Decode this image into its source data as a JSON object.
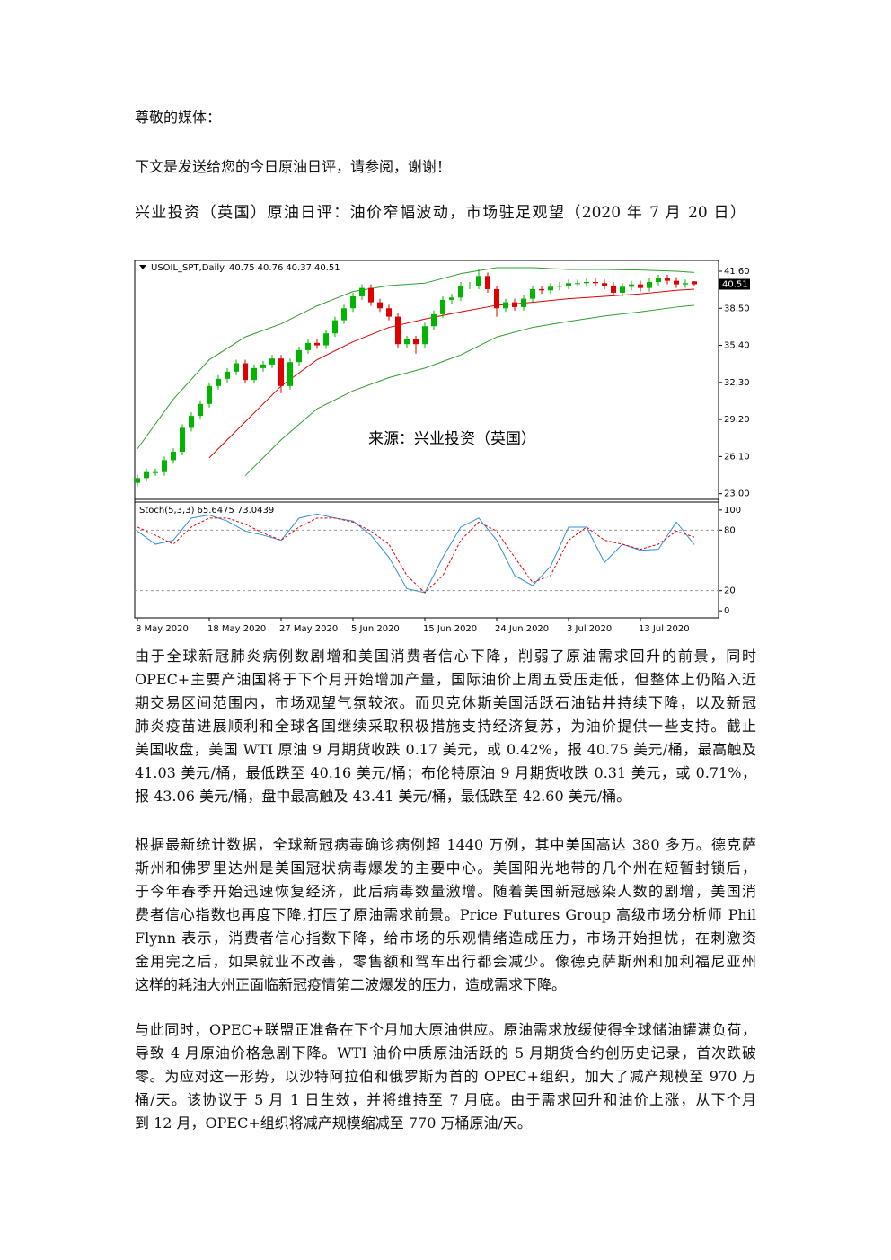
{
  "greeting": "尊敬的媒体：",
  "intro": "下文是发送给您的今日原油日评，请参阅，谢谢！",
  "headline": "兴业投资（英国）原油日评：油价窄幅波动，市场驻足观望（2020 年 7 月 20 日）",
  "chart_data": {
    "type": "candlestick",
    "symbol": "USOIL_SPT,Daily",
    "watermark": "来源：兴业投资（英国）",
    "categories": [
      "8 May 2020",
      null,
      null,
      null,
      null,
      null,
      null,
      null,
      "18 May 2020",
      null,
      null,
      null,
      null,
      null,
      null,
      null,
      "27 May 2020",
      null,
      null,
      null,
      null,
      null,
      null,
      null,
      "5 Jun 2020",
      null,
      null,
      null,
      null,
      null,
      null,
      null,
      "15 Jun 2020",
      null,
      null,
      null,
      null,
      null,
      null,
      null,
      "24 Jun 2020",
      null,
      null,
      null,
      null,
      null,
      null,
      null,
      "3 Jul 2020",
      null,
      null,
      null,
      null,
      null,
      null,
      null,
      "13 Jul 2020",
      null,
      null,
      null,
      null,
      null,
      null
    ],
    "open": [
      23.9,
      24.3,
      24.8,
      24.8,
      25.8,
      26.5,
      28.5,
      29.5,
      30.5,
      32,
      32.6,
      33.2,
      33.9,
      32.5,
      33.5,
      33.8,
      34.3,
      32,
      34,
      35,
      35.6,
      35.4,
      36.4,
      37.5,
      38.5,
      39.5,
      40.2,
      39,
      38.5,
      37.8,
      35.5,
      35.9,
      35.5,
      37,
      38,
      39.2,
      39.4,
      40.4,
      40.4,
      41.2,
      40.1,
      38.5,
      39,
      38.6,
      39.3,
      40.1,
      40,
      40.3,
      40.4,
      40.6,
      40.6,
      40.7,
      40.6,
      40.4,
      39.8,
      40.3,
      40.5,
      40.2,
      40.7,
      41,
      40.8,
      40.5,
      40.75
    ],
    "high": [
      24.6,
      25.1,
      25.1,
      26.1,
      26.8,
      28.8,
      29.8,
      30.8,
      32.3,
      32.9,
      33.5,
      34.2,
      34.2,
      33.8,
      34.1,
      34.6,
      34.6,
      34.3,
      35.3,
      35.9,
      35.9,
      36.7,
      37.8,
      38.8,
      39.8,
      40.5,
      40.5,
      39.3,
      38.8,
      38.1,
      36.2,
      36.2,
      37.3,
      38.3,
      39.5,
      39.7,
      40.7,
      40.7,
      41.8,
      41.5,
      40.4,
      39.3,
      39.3,
      39.6,
      40.4,
      40.4,
      40.6,
      40.7,
      40.9,
      40.9,
      41.0,
      41.0,
      40.9,
      40.7,
      40.6,
      40.8,
      40.8,
      41.0,
      41.3,
      41.3,
      41.1,
      40.9,
      40.76
    ],
    "low": [
      23.6,
      24.0,
      24.5,
      24.5,
      25.5,
      26.2,
      28.2,
      29.2,
      30.2,
      31.7,
      32.3,
      32.9,
      32.2,
      32.2,
      33.2,
      33.5,
      31.4,
      31.7,
      33.7,
      34.7,
      35.1,
      35.1,
      36.1,
      37.2,
      38.2,
      39.2,
      38.7,
      38.2,
      37.5,
      35.2,
      35.2,
      34.7,
      35.2,
      36.7,
      37.7,
      38.9,
      39.1,
      40.1,
      40.1,
      39.8,
      37.8,
      38.2,
      38.3,
      38.3,
      39.0,
      39.7,
      39.7,
      40.0,
      40.1,
      40.3,
      40.3,
      40.3,
      40.1,
      39.5,
      39.5,
      40.0,
      39.9,
      39.9,
      40.4,
      40.5,
      40.2,
      40.2,
      40.37
    ],
    "close": [
      24.3,
      24.8,
      24.8,
      25.8,
      26.5,
      28.5,
      29.5,
      30.5,
      32,
      32.6,
      33.2,
      33.9,
      32.5,
      33.5,
      33.8,
      34.3,
      32,
      34,
      35,
      35.6,
      35.4,
      36.4,
      37.5,
      38.5,
      39.5,
      40.2,
      39,
      38.5,
      37.8,
      35.5,
      35.9,
      35.5,
      37,
      38,
      39.2,
      39.4,
      40.4,
      40.4,
      41.2,
      40.1,
      38.5,
      39,
      38.6,
      39.3,
      40.1,
      40,
      40.3,
      40.4,
      40.6,
      40.6,
      40.7,
      40.6,
      40.4,
      39.8,
      40.3,
      40.5,
      40.2,
      40.7,
      41,
      40.8,
      40.5,
      40.6,
      40.51
    ],
    "up_color": "#00b400",
    "down_color": "#e00000",
    "ylim": [
      22.6,
      42.5
    ],
    "yticks": [
      {
        "value": 23,
        "label": "23.00"
      },
      {
        "value": 26.1,
        "label": "26.10"
      },
      {
        "value": 29.2,
        "label": "29.20"
      },
      {
        "value": 32.3,
        "label": "32.30"
      },
      {
        "value": 35.4,
        "label": "35.40"
      },
      {
        "value": 38.5,
        "label": "38.50"
      },
      {
        "value": 41.6,
        "label": "41.60"
      }
    ],
    "bands": {
      "x": [
        0,
        4,
        8,
        12,
        16,
        20,
        24,
        28,
        32,
        36,
        40,
        44,
        48,
        52,
        56,
        60,
        62
      ],
      "series": [
        {
          "color": "#2e9e2e",
          "values": [
            26.75,
            30.9,
            34.2,
            36.1,
            37.2,
            38.7,
            39.9,
            40.4,
            40.6,
            41.4,
            41.9,
            41.9,
            41.75,
            41.75,
            41.7,
            41.6,
            41.5
          ]
        },
        {
          "color": "#e00000",
          "values": [
            null,
            null,
            26,
            29,
            32,
            34.2,
            35.7,
            36.9,
            37.6,
            38.2,
            38.75,
            39,
            39.3,
            39.5,
            39.7,
            40,
            40.1
          ]
        },
        {
          "color": "#2e9e2e",
          "values": [
            null,
            null,
            null,
            24.5,
            27.5,
            30.1,
            31.6,
            32.7,
            33.5,
            34.6,
            36.1,
            36.9,
            37.4,
            37.85,
            38.2,
            38.6,
            38.75
          ]
        }
      ]
    },
    "stoch": {
      "title": "Stoch(5,3,3)",
      "x": [
        0,
        2,
        4,
        6,
        8,
        10,
        12,
        14,
        16,
        18,
        20,
        22,
        24,
        26,
        28,
        30,
        32,
        34,
        36,
        38,
        40,
        42,
        44,
        46,
        48,
        50,
        52,
        54,
        56,
        58,
        60,
        62
      ],
      "series": [
        {
          "color": "#2f8fd8",
          "dashed": false,
          "values": [
            79,
            66,
            70,
            92,
            95,
            89,
            79,
            75,
            70,
            92,
            96,
            92,
            89,
            75,
            53,
            22,
            18,
            53,
            83,
            92,
            70,
            35,
            25,
            44,
            83,
            83,
            48,
            66,
            60,
            61,
            88,
            65.6475
          ]
        },
        {
          "color": "#e00000",
          "dashed": true,
          "values": [
            83,
            75,
            66,
            83,
            92,
            92,
            86,
            77,
            70,
            83,
            92,
            92,
            88,
            79,
            66,
            35,
            18,
            35,
            70,
            88,
            79,
            53,
            28,
            35,
            70,
            83,
            70,
            66,
            61,
            66,
            79,
            73.0439
          ]
        }
      ],
      "ylim": [
        -7,
        107
      ],
      "yticks": [
        100,
        80,
        20,
        0
      ],
      "grid_levels": [
        80,
        20
      ]
    }
  },
  "paragraphs": [
    [
      "由于全球新冠肺炎病例数剧增和美国消费者信心下降，削弱了原油需求回升的前景，同时",
      "OPEC+主要产油国将于下个月开始增加产量，国际油价上周五受压走低，但整体上仍陷入近",
      "期交易区间范围内，市场观望气氛较浓。而贝克休斯美国活跃石油钻井持续下降，以及新冠",
      "肺炎疫苗进展顺利和全球各国继续采取积极措施支持经济复苏，为油价提供一些支持。截止",
      "美国收盘，美国 WTI 原油 9 月期货收跌 0.17 美元，或 0.42%，报 40.75 美元/桶，最高触及",
      "41.03 美元/桶，最低跌至 40.16 美元/桶；布伦特原油 9 月期货收跌 0.31 美元，或 0.71%，",
      "报 43.06 美元/桶，盘中最高触及 43.41 美元/桶，最低跌至 42.60 美元/桶。"
    ],
    [
      "根据最新统计数据，全球新冠病毒确诊病例超 1440 万例，其中美国高达 380 多万。德克萨",
      "斯州和佛罗里达州是美国冠状病毒爆发的主要中心。美国阳光地带的几个州在短暂封锁后，",
      "于今年春季开始迅速恢复经济，此后病毒数量激增。随着美国新冠感染人数的剧增，美国消",
      "费者信心指数也再度下降,打压了原油需求前景。Price Futures Group 高级市场分析师 Phil",
      "Flynn 表示，消费者信心指数下降，给市场的乐观情绪造成压力，市场开始担忧，在刺激资",
      "金用完之后，如果就业不改善，零售额和驾车出行都会减少。像德克萨斯州和加利福尼亚州",
      "这样的耗油大州正面临新冠疫情第二波爆发的压力，造成需求下降。"
    ],
    [
      "与此同时，OPEC+联盟正准备在下个月加大原油供应。原油需求放缓使得全球储油罐满负荷，",
      "导致 4 月原油价格急剧下降。WTI 油价中质原油活跃的 5 月期货合约创历史记录，首次跌破",
      "零。为应对这一形势，以沙特阿拉伯和俄罗斯为首的 OPEC+组织，加大了减产规模至 970 万",
      "桶/天。该协议于 5 月 1 日生效，并将维持至 7 月底。由于需求回升和油价上涨，从下个月",
      "到 12 月，OPEC+组织将减产规模缩减至 770 万桶原油/天。"
    ]
  ]
}
